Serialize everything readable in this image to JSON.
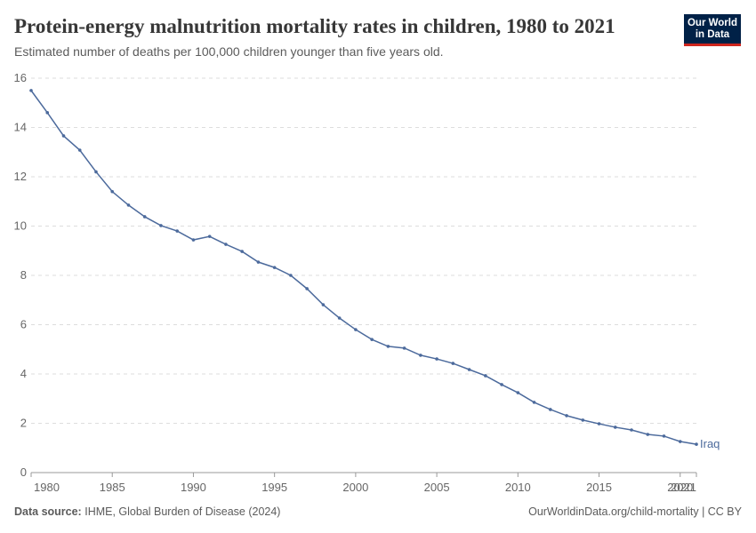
{
  "header": {
    "logo": [
      "Our World",
      "in Data"
    ]
  },
  "chart_data": {
    "type": "line",
    "title": "Protein-energy malnutrition mortality rates in children, 1980 to 2021",
    "subtitle": "Estimated number of deaths per 100,000 children younger than five years old.",
    "x": [
      1980,
      1981,
      1982,
      1983,
      1984,
      1985,
      1986,
      1987,
      1988,
      1989,
      1990,
      1991,
      1992,
      1993,
      1994,
      1995,
      1996,
      1997,
      1998,
      1999,
      2000,
      2001,
      2002,
      2003,
      2004,
      2005,
      2006,
      2007,
      2008,
      2009,
      2010,
      2011,
      2012,
      2013,
      2014,
      2015,
      2016,
      2017,
      2018,
      2019,
      2020,
      2021
    ],
    "series": [
      {
        "name": "Iraq",
        "color": "#4c6a9c",
        "values": [
          15.5,
          14.6,
          13.66,
          13.08,
          12.2,
          11.4,
          10.85,
          10.38,
          10.02,
          9.8,
          9.44,
          9.58,
          9.26,
          8.97,
          8.54,
          8.32,
          8.0,
          7.46,
          6.81,
          6.27,
          5.8,
          5.4,
          5.12,
          5.05,
          4.76,
          4.61,
          4.43,
          4.18,
          3.93,
          3.57,
          3.24,
          2.85,
          2.56,
          2.31,
          2.13,
          1.98,
          1.84,
          1.73,
          1.55,
          1.48,
          1.26,
          1.15
        ]
      }
    ],
    "xlim": [
      1980,
      2021
    ],
    "xticks": [
      1980,
      1985,
      1990,
      1995,
      2000,
      2005,
      2010,
      2015,
      2020,
      2021
    ],
    "ylim": [
      0,
      16
    ],
    "yticks": [
      0,
      2,
      4,
      6,
      8,
      10,
      12,
      14,
      16
    ],
    "grid": true
  },
  "footer": {
    "source_label": "Data source:",
    "source": "IHME, Global Burden of Disease (2024)",
    "credit": "OurWorldinData.org/child-mortality | CC BY"
  }
}
